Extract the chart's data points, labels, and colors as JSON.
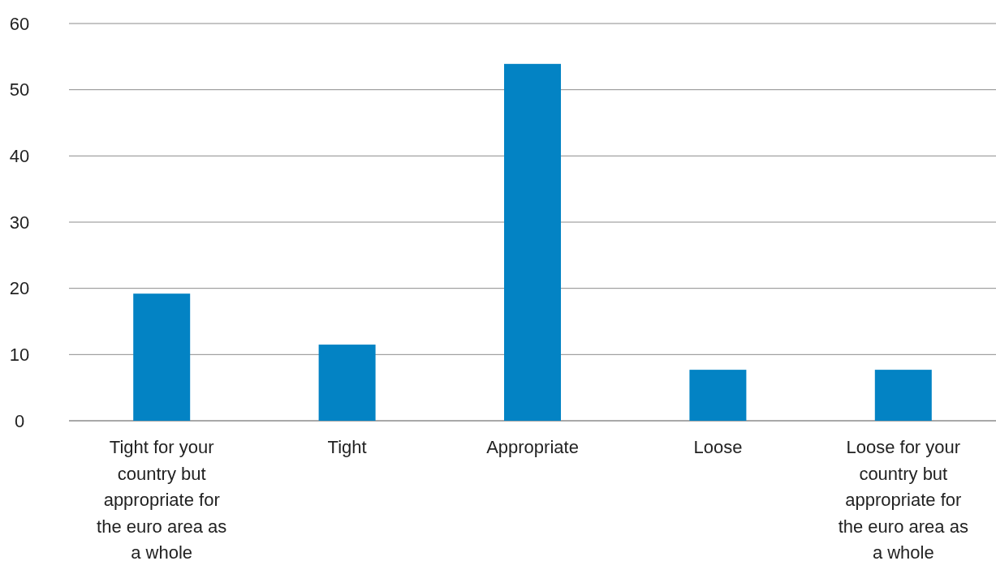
{
  "chart_data": {
    "type": "bar",
    "categories": [
      "Tight for your country but appropriate for the euro area as a whole",
      "Tight",
      "Appropriate",
      "Loose",
      "Loose for your country but appropriate for the euro area as a whole"
    ],
    "values": [
      19.2,
      11.5,
      53.9,
      7.7,
      7.7
    ],
    "color": "#0383c4",
    "ylim": [
      0,
      60
    ],
    "yticks": [
      0,
      10,
      20,
      30,
      40,
      50,
      60
    ],
    "grid": "y"
  }
}
